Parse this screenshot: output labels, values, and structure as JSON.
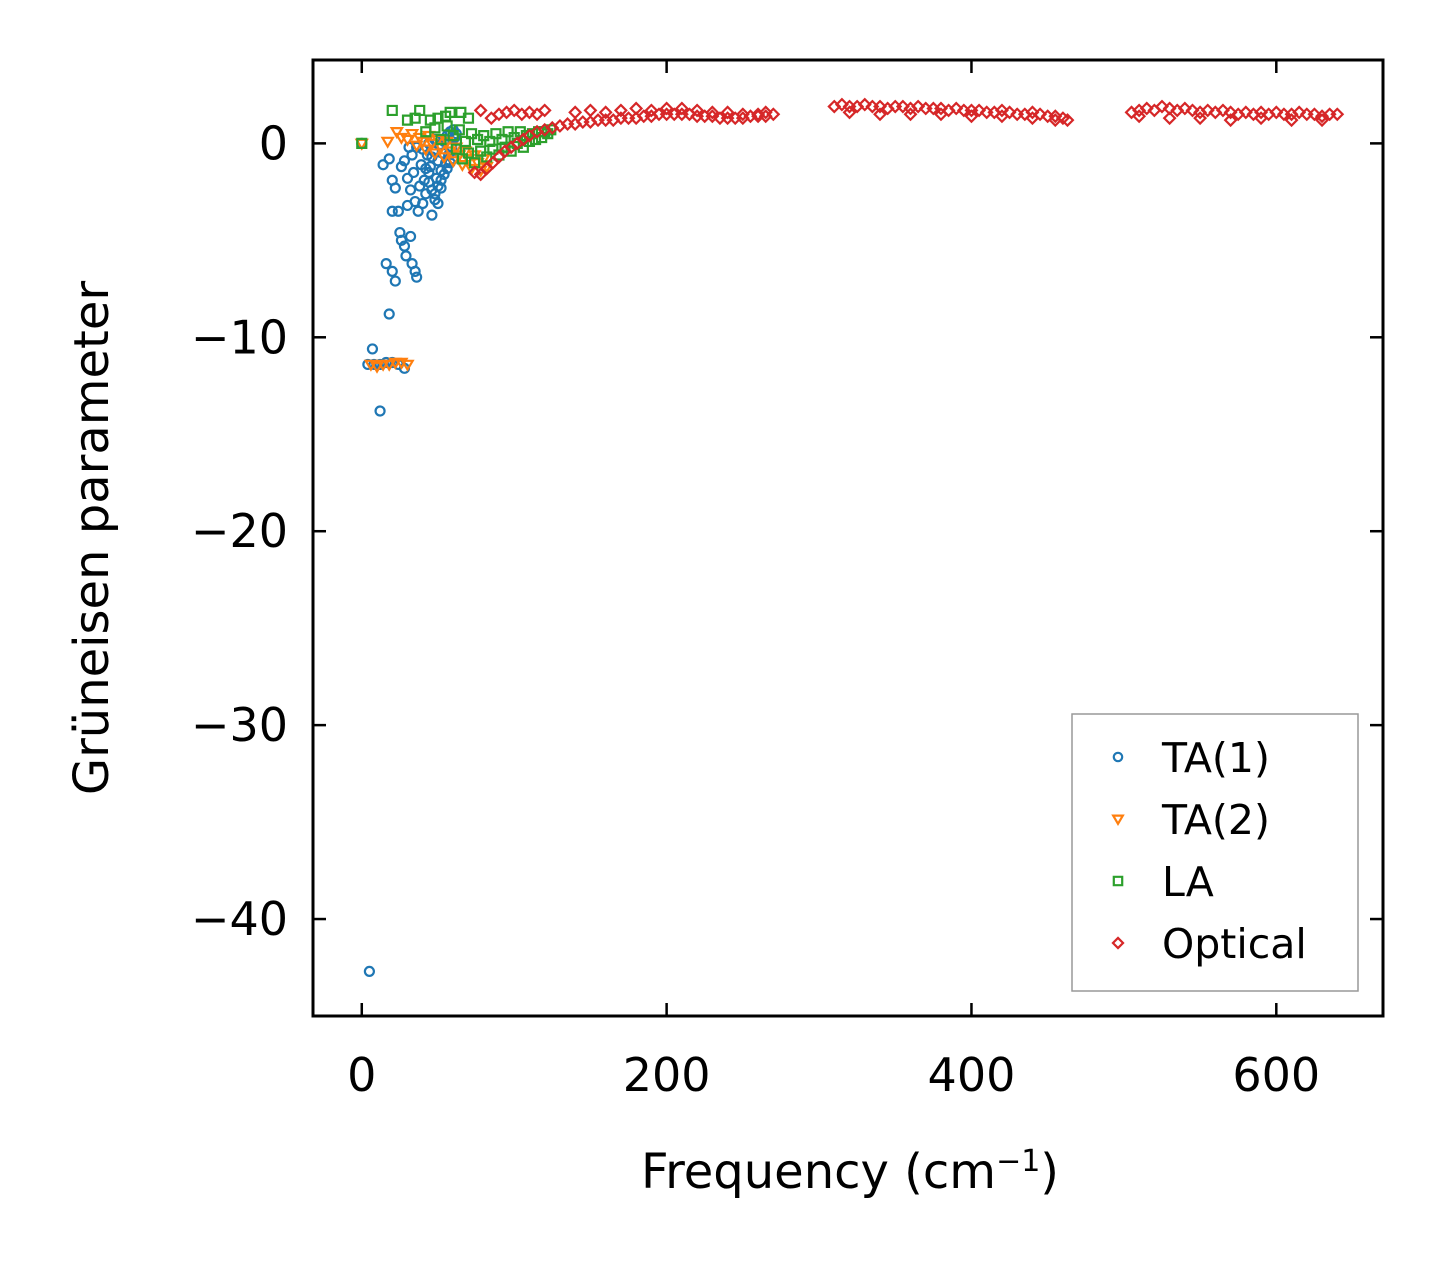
{
  "chart_data": {
    "type": "scatter",
    "title": "",
    "xlabel": "Frequency (cm",
    "xlabel_sup": "−1",
    "xlabel_end": ")",
    "ylabel": "Grüneisen parameter",
    "xlim": [
      -32,
      670
    ],
    "ylim": [
      -45,
      4.3
    ],
    "xticks": [
      0,
      200,
      400,
      600
    ],
    "xtick_labels": [
      "0",
      "200",
      "400",
      "600"
    ],
    "yticks": [
      0,
      -10,
      -20,
      -30,
      -40
    ],
    "ytick_labels": [
      "0",
      "−10",
      "−20",
      "−30",
      "−40"
    ],
    "legend_position": "lower-right",
    "series": [
      {
        "name": "TA(1)",
        "label": "TA(1)",
        "color": "#1f77b4",
        "marker": "circle",
        "points": [
          [
            0,
            0
          ],
          [
            5,
            -42.7
          ],
          [
            12,
            -13.8
          ],
          [
            7,
            -10.6
          ],
          [
            18,
            -8.8
          ],
          [
            16,
            -6.2
          ],
          [
            20,
            -6.6
          ],
          [
            22,
            -7.1
          ],
          [
            14,
            -1.1
          ],
          [
            18,
            -0.8
          ],
          [
            20,
            -1.9
          ],
          [
            22,
            -2.3
          ],
          [
            20,
            -3.5
          ],
          [
            24,
            -3.5
          ],
          [
            25,
            -4.6
          ],
          [
            26,
            -5.0
          ],
          [
            28,
            -5.3
          ],
          [
            29,
            -5.8
          ],
          [
            30,
            -3.2
          ],
          [
            32,
            -4.8
          ],
          [
            33,
            -6.2
          ],
          [
            35,
            -6.6
          ],
          [
            36,
            -6.9
          ],
          [
            26,
            -1.2
          ],
          [
            28,
            -0.9
          ],
          [
            30,
            -1.8
          ],
          [
            32,
            -2.4
          ],
          [
            34,
            -1.5
          ],
          [
            35,
            -3.0
          ],
          [
            37,
            -3.5
          ],
          [
            38,
            -2.2
          ],
          [
            40,
            -3.1
          ],
          [
            42,
            -2.6
          ],
          [
            44,
            -1.5
          ],
          [
            46,
            -3.7
          ],
          [
            48,
            -2.9
          ],
          [
            50,
            -3.1
          ],
          [
            31,
            -0.2
          ],
          [
            33,
            -0.6
          ],
          [
            36,
            -0.2
          ],
          [
            39,
            -1.1
          ],
          [
            40,
            -0.3
          ],
          [
            41,
            -1.9
          ],
          [
            43,
            -0.6
          ],
          [
            45,
            -1.2
          ],
          [
            47,
            -0.4
          ],
          [
            49,
            -1.8
          ],
          [
            50,
            -0.9
          ],
          [
            51,
            -0.1
          ],
          [
            52,
            -1.4
          ],
          [
            53,
            -0.5
          ],
          [
            54,
            0.1
          ],
          [
            55,
            -1.0
          ],
          [
            56,
            0.4
          ],
          [
            57,
            -0.6
          ],
          [
            58,
            0.6
          ],
          [
            59,
            -0.2
          ],
          [
            60,
            0.7
          ],
          [
            44,
            0.0
          ],
          [
            46,
            -0.7
          ],
          [
            48,
            0.2
          ],
          [
            50,
            -2.2
          ],
          [
            52,
            -1.9
          ],
          [
            54,
            -1.6
          ],
          [
            56,
            -1.3
          ],
          [
            58,
            -1.0
          ],
          [
            60,
            -0.8
          ],
          [
            61,
            0.3
          ],
          [
            62,
            0.5
          ],
          [
            42,
            -1.3
          ],
          [
            44,
            -2.0
          ],
          [
            46,
            -2.4
          ],
          [
            48,
            -2.6
          ],
          [
            52,
            -2.3
          ],
          [
            4,
            -11.4
          ],
          [
            8,
            -11.4
          ],
          [
            12,
            -11.4
          ],
          [
            16,
            -11.3
          ],
          [
            20,
            -11.3
          ],
          [
            24,
            -11.4
          ],
          [
            28,
            -11.6
          ]
        ]
      },
      {
        "name": "TA(2)",
        "label": "TA(2)",
        "color": "#ff7f0e",
        "marker": "triangle-down",
        "points": [
          [
            0,
            0
          ],
          [
            17,
            0.1
          ],
          [
            23,
            0.6
          ],
          [
            26,
            0.3
          ],
          [
            30,
            0.2
          ],
          [
            33,
            0.5
          ],
          [
            36,
            -0.1
          ],
          [
            38,
            0.3
          ],
          [
            40,
            0.1
          ],
          [
            42,
            -0.3
          ],
          [
            44,
            0.4
          ],
          [
            46,
            0.0
          ],
          [
            48,
            -0.5
          ],
          [
            50,
            0.2
          ],
          [
            52,
            -0.2
          ],
          [
            54,
            -0.7
          ],
          [
            56,
            0.1
          ],
          [
            58,
            -0.4
          ],
          [
            60,
            -0.9
          ],
          [
            62,
            -0.2
          ],
          [
            64,
            -0.6
          ],
          [
            66,
            -1.1
          ],
          [
            68,
            -0.4
          ],
          [
            70,
            -0.8
          ],
          [
            72,
            -1.3
          ],
          [
            74,
            -0.6
          ],
          [
            76,
            -1.0
          ],
          [
            78,
            -1.4
          ],
          [
            80,
            -0.8
          ],
          [
            82,
            -1.2
          ],
          [
            6,
            -11.4
          ],
          [
            10,
            -11.5
          ],
          [
            14,
            -11.4
          ],
          [
            18,
            -11.4
          ],
          [
            22,
            -11.3
          ],
          [
            26,
            -11.3
          ],
          [
            30,
            -11.4
          ]
        ]
      },
      {
        "name": "LA",
        "label": "LA",
        "color": "#2ca02c",
        "marker": "square",
        "points": [
          [
            0,
            0
          ],
          [
            20,
            1.7
          ],
          [
            30,
            1.2
          ],
          [
            35,
            1.3
          ],
          [
            38,
            1.7
          ],
          [
            45,
            1.2
          ],
          [
            50,
            1.3
          ],
          [
            55,
            1.4
          ],
          [
            58,
            1.6
          ],
          [
            65,
            1.6
          ],
          [
            70,
            1.3
          ],
          [
            42,
            0.6
          ],
          [
            48,
            0.8
          ],
          [
            52,
            0.2
          ],
          [
            56,
            0.9
          ],
          [
            60,
            0.4
          ],
          [
            62,
            -0.3
          ],
          [
            64,
            0.7
          ],
          [
            66,
            -0.8
          ],
          [
            68,
            0.1
          ],
          [
            70,
            -0.5
          ],
          [
            72,
            0.5
          ],
          [
            74,
            -1.0
          ],
          [
            76,
            0.2
          ],
          [
            78,
            -0.4
          ],
          [
            80,
            0.4
          ],
          [
            82,
            -0.7
          ],
          [
            84,
            0.1
          ],
          [
            86,
            -0.3
          ],
          [
            88,
            0.5
          ],
          [
            90,
            -0.6
          ],
          [
            92,
            0.2
          ],
          [
            94,
            -0.2
          ],
          [
            96,
            0.6
          ],
          [
            98,
            -0.4
          ],
          [
            100,
            0.3
          ],
          [
            102,
            0.0
          ],
          [
            104,
            0.6
          ],
          [
            106,
            -0.2
          ],
          [
            108,
            0.4
          ],
          [
            110,
            0.1
          ],
          [
            112,
            0.5
          ],
          [
            114,
            0.2
          ],
          [
            116,
            0.6
          ],
          [
            118,
            0.3
          ],
          [
            120,
            0.6
          ],
          [
            122,
            0.5
          ],
          [
            124,
            0.7
          ]
        ]
      },
      {
        "name": "Optical",
        "label": "Optical",
        "color": "#d62728",
        "marker": "diamond",
        "points": [
          [
            78,
            1.7
          ],
          [
            85,
            1.3
          ],
          [
            90,
            1.5
          ],
          [
            95,
            1.6
          ],
          [
            100,
            1.7
          ],
          [
            105,
            1.5
          ],
          [
            110,
            1.6
          ],
          [
            115,
            1.5
          ],
          [
            120,
            1.7
          ],
          [
            74,
            -1.5
          ],
          [
            78,
            -1.6
          ],
          [
            82,
            -1.3
          ],
          [
            86,
            -1.0
          ],
          [
            90,
            -0.7
          ],
          [
            94,
            -0.4
          ],
          [
            98,
            -0.2
          ],
          [
            102,
            0.0
          ],
          [
            106,
            0.2
          ],
          [
            110,
            0.4
          ],
          [
            115,
            0.6
          ],
          [
            120,
            0.7
          ],
          [
            125,
            0.8
          ],
          [
            130,
            0.9
          ],
          [
            135,
            1.0
          ],
          [
            140,
            1.0
          ],
          [
            145,
            1.1
          ],
          [
            150,
            1.1
          ],
          [
            155,
            1.2
          ],
          [
            160,
            1.2
          ],
          [
            165,
            1.2
          ],
          [
            170,
            1.3
          ],
          [
            175,
            1.3
          ],
          [
            180,
            1.3
          ],
          [
            185,
            1.4
          ],
          [
            190,
            1.4
          ],
          [
            195,
            1.5
          ],
          [
            200,
            1.5
          ],
          [
            205,
            1.5
          ],
          [
            210,
            1.5
          ],
          [
            215,
            1.5
          ],
          [
            220,
            1.4
          ],
          [
            225,
            1.4
          ],
          [
            230,
            1.4
          ],
          [
            235,
            1.3
          ],
          [
            240,
            1.3
          ],
          [
            245,
            1.3
          ],
          [
            250,
            1.3
          ],
          [
            255,
            1.4
          ],
          [
            260,
            1.4
          ],
          [
            265,
            1.4
          ],
          [
            270,
            1.5
          ],
          [
            140,
            1.6
          ],
          [
            150,
            1.7
          ],
          [
            160,
            1.6
          ],
          [
            170,
            1.7
          ],
          [
            180,
            1.8
          ],
          [
            190,
            1.7
          ],
          [
            200,
            1.8
          ],
          [
            210,
            1.8
          ],
          [
            220,
            1.7
          ],
          [
            230,
            1.6
          ],
          [
            240,
            1.6
          ],
          [
            250,
            1.5
          ],
          [
            260,
            1.5
          ],
          [
            265,
            1.6
          ],
          [
            310,
            1.9
          ],
          [
            315,
            2.0
          ],
          [
            320,
            1.9
          ],
          [
            325,
            1.9
          ],
          [
            330,
            2.0
          ],
          [
            335,
            1.9
          ],
          [
            340,
            1.9
          ],
          [
            345,
            1.8
          ],
          [
            350,
            1.9
          ],
          [
            355,
            1.9
          ],
          [
            360,
            1.8
          ],
          [
            365,
            1.9
          ],
          [
            370,
            1.8
          ],
          [
            375,
            1.8
          ],
          [
            380,
            1.8
          ],
          [
            385,
            1.7
          ],
          [
            390,
            1.8
          ],
          [
            395,
            1.7
          ],
          [
            400,
            1.7
          ],
          [
            405,
            1.7
          ],
          [
            410,
            1.6
          ],
          [
            415,
            1.6
          ],
          [
            420,
            1.7
          ],
          [
            425,
            1.6
          ],
          [
            430,
            1.5
          ],
          [
            435,
            1.5
          ],
          [
            440,
            1.6
          ],
          [
            445,
            1.5
          ],
          [
            450,
            1.4
          ],
          [
            455,
            1.4
          ],
          [
            460,
            1.3
          ],
          [
            463,
            1.2
          ],
          [
            320,
            1.6
          ],
          [
            340,
            1.5
          ],
          [
            360,
            1.5
          ],
          [
            380,
            1.5
          ],
          [
            400,
            1.4
          ],
          [
            420,
            1.4
          ],
          [
            440,
            1.3
          ],
          [
            455,
            1.2
          ],
          [
            505,
            1.6
          ],
          [
            510,
            1.7
          ],
          [
            515,
            1.8
          ],
          [
            520,
            1.7
          ],
          [
            525,
            1.9
          ],
          [
            530,
            1.8
          ],
          [
            535,
            1.7
          ],
          [
            540,
            1.8
          ],
          [
            545,
            1.7
          ],
          [
            550,
            1.6
          ],
          [
            555,
            1.7
          ],
          [
            560,
            1.6
          ],
          [
            565,
            1.7
          ],
          [
            570,
            1.6
          ],
          [
            575,
            1.5
          ],
          [
            580,
            1.6
          ],
          [
            585,
            1.5
          ],
          [
            590,
            1.6
          ],
          [
            595,
            1.5
          ],
          [
            600,
            1.6
          ],
          [
            605,
            1.5
          ],
          [
            610,
            1.5
          ],
          [
            615,
            1.6
          ],
          [
            620,
            1.5
          ],
          [
            625,
            1.5
          ],
          [
            630,
            1.4
          ],
          [
            635,
            1.5
          ],
          [
            640,
            1.5
          ],
          [
            510,
            1.4
          ],
          [
            530,
            1.3
          ],
          [
            550,
            1.3
          ],
          [
            570,
            1.2
          ],
          [
            590,
            1.3
          ],
          [
            610,
            1.2
          ],
          [
            630,
            1.2
          ]
        ]
      }
    ]
  }
}
